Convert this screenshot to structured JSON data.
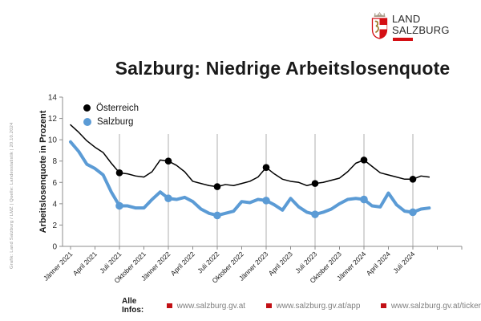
{
  "logo": {
    "line1": "LAND",
    "line2": "SALZBURG"
  },
  "title": "Salzburg: Niedrige Arbeitslosenquote",
  "sidebar": {
    "credit": "Grafik: Land Salzburg / LMZ | Quelle: Landesstatistik | 20.10.2024"
  },
  "footer": {
    "label": "Alle Infos:",
    "links": [
      "www.salzburg.gv.at",
      "www.salzburg.gv.at/app",
      "www.salzburg.gv.at/ticker"
    ]
  },
  "colors": {
    "salzburg_blue": "#5B9BD5",
    "oesterreich_black": "#000000",
    "grid_gray": "#A6A6A6",
    "axis_gray": "#8C8C8C",
    "brand_red": "#D40F14",
    "footer_square_red": "#C21015",
    "link_gray": "#7F7F7F"
  },
  "chart_data": {
    "type": "line",
    "title": "",
    "xlabel": "",
    "ylabel": "Arbeitslosenquote in Prozent",
    "ylim": [
      0,
      14
    ],
    "yticks": [
      0,
      2,
      4,
      6,
      8,
      10,
      12,
      14
    ],
    "grid": "vertical-every-6-months",
    "legend_position": "top-left-inside",
    "frequency": "monthly",
    "start": "Jänner 2021",
    "end": "September 2024",
    "x_tick_labels": [
      "Jänner 2021",
      "April 2021",
      "Juli 2021",
      "Oktober 2021",
      "Jänner 2022",
      "April 2022",
      "Juli 2022",
      "Oktober 2022",
      "Jänner 2023",
      "April 2023",
      "Juli 2023",
      "Oktober 2023",
      "Jänner 2024",
      "April 2024",
      "Juli 2024"
    ],
    "x_tick_every_months": 3,
    "marker_indices": [
      6,
      12,
      18,
      24,
      30,
      36,
      42
    ],
    "series": [
      {
        "name": "Österreich",
        "color": "#000000",
        "values": [
          11.4,
          10.7,
          9.9,
          9.3,
          8.8,
          7.8,
          6.9,
          6.8,
          6.6,
          6.5,
          7.0,
          8.1,
          8.0,
          7.6,
          7.0,
          6.1,
          5.9,
          5.7,
          5.6,
          5.8,
          5.7,
          5.9,
          6.1,
          6.5,
          7.4,
          6.8,
          6.3,
          6.1,
          6.0,
          5.7,
          5.9,
          6.0,
          6.2,
          6.4,
          7.0,
          7.8,
          8.1,
          7.5,
          6.9,
          6.7,
          6.5,
          6.3,
          6.3,
          6.6,
          6.5
        ]
      },
      {
        "name": "Salzburg",
        "color": "#5B9BD5",
        "values": [
          9.8,
          8.9,
          7.7,
          7.3,
          6.7,
          5.1,
          3.8,
          3.8,
          3.6,
          3.6,
          4.4,
          5.1,
          4.5,
          4.4,
          4.6,
          4.2,
          3.5,
          3.1,
          2.9,
          3.1,
          3.3,
          4.2,
          4.1,
          4.4,
          4.3,
          3.9,
          3.4,
          4.5,
          3.7,
          3.2,
          3.0,
          3.2,
          3.5,
          4.0,
          4.4,
          4.5,
          4.4,
          3.8,
          3.7,
          5.0,
          3.9,
          3.3,
          3.2,
          3.5,
          3.6
        ]
      }
    ],
    "marker_values": {
      "Österreich": {
        "Juli 2021": 6.9,
        "Jänner 2022": 8.0,
        "Juli 2022": 5.6,
        "Jänner 2023": 7.4,
        "Juli 2023": 5.9,
        "Jänner 2024": 8.1,
        "Juli 2024": 6.3
      },
      "Salzburg": {
        "Juli 2021": 3.8,
        "Jänner 2022": 4.5,
        "Juli 2022": 2.9,
        "Jänner 2023": 4.3,
        "Juli 2023": 3.0,
        "Jänner 2024": 4.4,
        "Juli 2024": 3.2
      }
    }
  }
}
